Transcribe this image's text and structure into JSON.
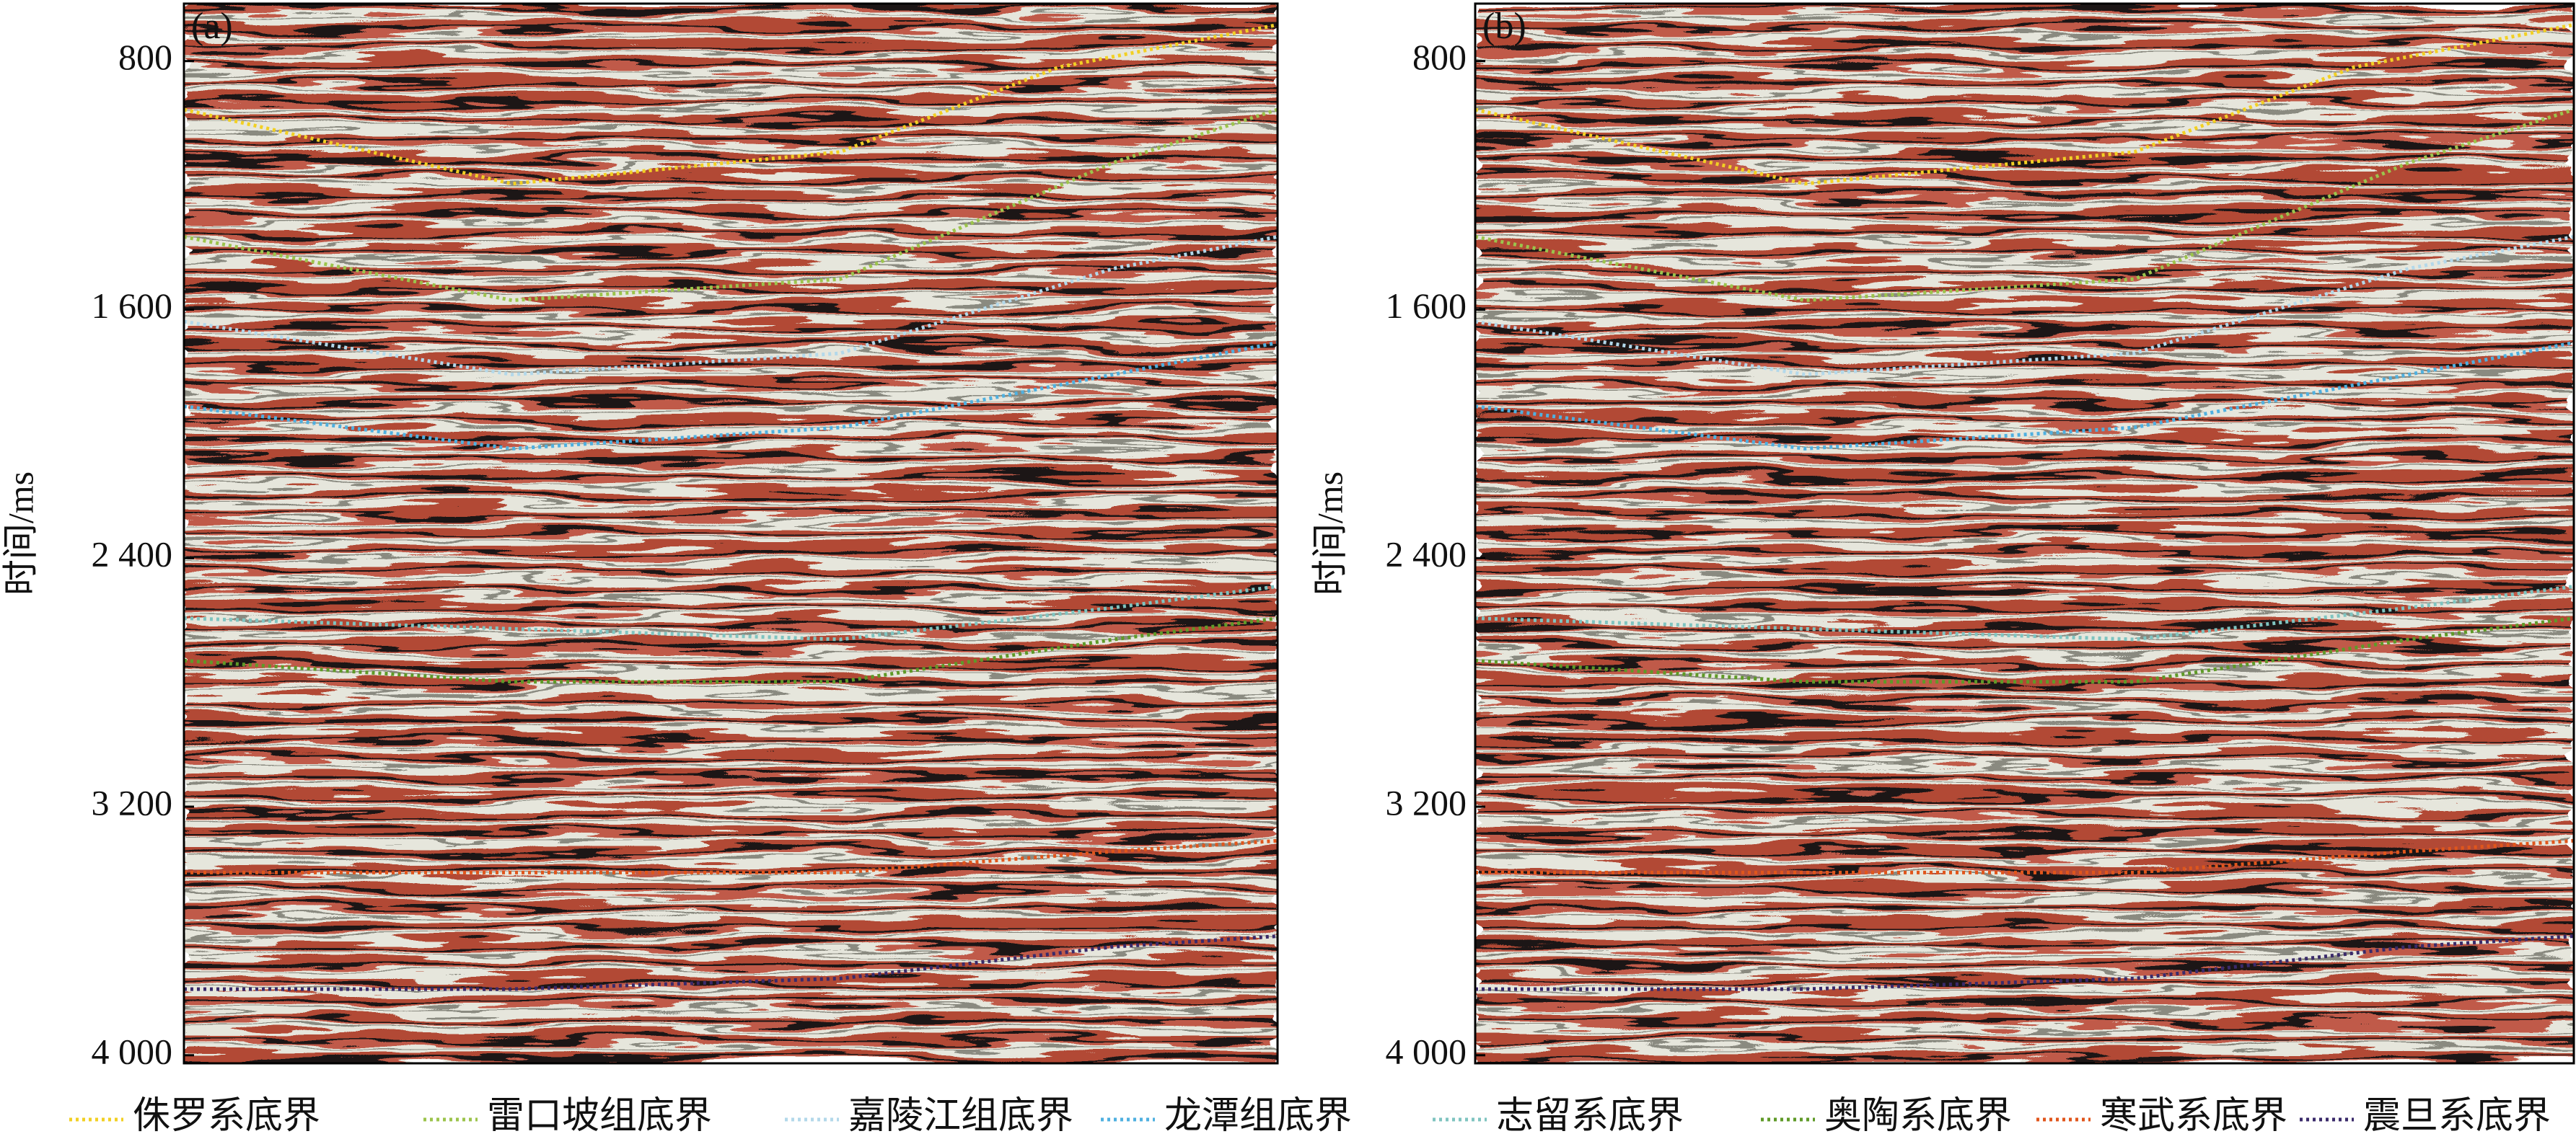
{
  "chart_data": [
    {
      "type": "seismic",
      "panel_label": "(a)",
      "ylabel": "时间/ms",
      "ylim": [
        615,
        4026
      ],
      "yticks": [
        800,
        {
          "value": 1600,
          "label": "1 600"
        },
        {
          "value": 2400,
          "label": "2 400"
        },
        {
          "value": 3200,
          "label": "3 200"
        },
        {
          "value": 4000,
          "label": "4 000"
        }
      ]
    },
    {
      "type": "seismic",
      "panel_label": "(b)",
      "ylabel": "时间/ms",
      "ylim": [
        615,
        4026
      ],
      "yticks": [
        800,
        {
          "value": 1600,
          "label": "1 600"
        },
        {
          "value": 2400,
          "label": "2 400"
        },
        {
          "value": 3200,
          "label": "3 200"
        },
        {
          "value": 4000,
          "label": "4 000"
        }
      ]
    }
  ],
  "legend": [
    {
      "name": "侏罗系底界",
      "color": "#f2d024"
    },
    {
      "name": "雷口坡组底界",
      "color": "#9cc44c"
    },
    {
      "name": "嘉陵江组底界",
      "color": "#b3d8ea"
    },
    {
      "name": "龙潭组底界",
      "color": "#4fb0e0"
    },
    {
      "name": "志留系底界",
      "color": "#7fc4c0"
    },
    {
      "name": "奥陶系底界",
      "color": "#5f9a28"
    },
    {
      "name": "寒武系底界",
      "color": "#e0561c"
    },
    {
      "name": "震旦系底界",
      "color": "#3a2a6a"
    }
  ]
}
